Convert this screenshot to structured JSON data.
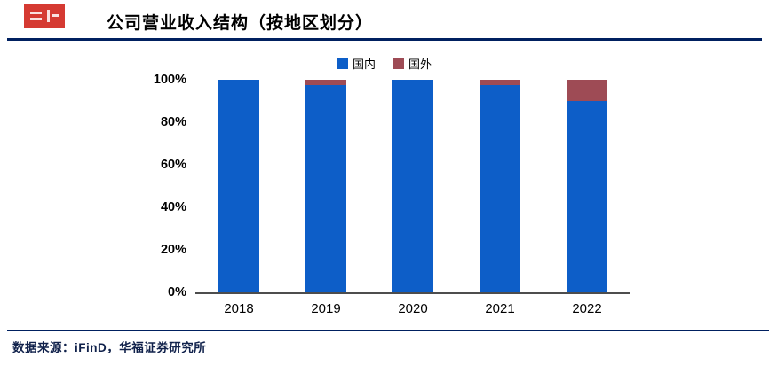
{
  "page": {
    "title": "公司营业收入结构（按地区划分）",
    "source_text": "数据来源：iFinD，华福证券研究所"
  },
  "colors": {
    "domestic_blue": "#0d5ec8",
    "overseas_maroon": "#9e4b55",
    "rule_navy": "#002060",
    "axis_line": "#4d4d4d",
    "logo_red": "#d53a32"
  },
  "chart_data": {
    "type": "bar",
    "stacked": true,
    "title": "公司营业收入结构（按地区划分）",
    "categories": [
      "2018",
      "2019",
      "2020",
      "2021",
      "2022"
    ],
    "series": [
      {
        "name": "国内",
        "color": "#0d5ec8",
        "values": [
          99.8,
          97.6,
          99.9,
          97.3,
          90.2
        ]
      },
      {
        "name": "国外",
        "color": "#9e4b55",
        "values": [
          0.2,
          2.4,
          0.1,
          2.7,
          9.8
        ]
      }
    ],
    "xlabel": "",
    "ylabel": "",
    "ylim": [
      0,
      100
    ],
    "yticks": [
      0,
      20,
      40,
      60,
      80,
      100
    ],
    "ytick_format": "percent",
    "grid": false,
    "legend_position": "top-center"
  }
}
